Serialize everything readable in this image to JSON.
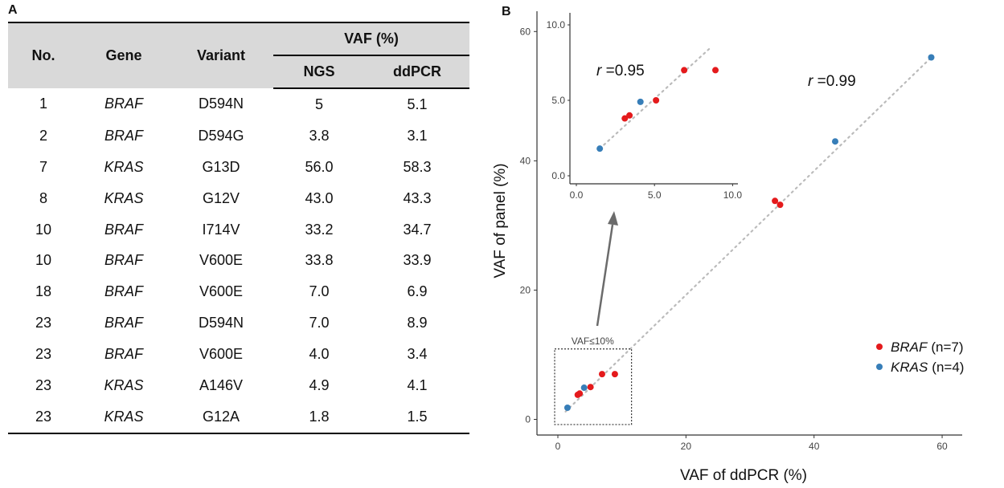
{
  "panel_labels": {
    "a": "A",
    "b": "B"
  },
  "table": {
    "headers": {
      "no": "No.",
      "gene": "Gene",
      "variant": "Variant",
      "vaf": "VAF (%)",
      "ngs": "NGS",
      "ddpcr": "ddPCR"
    },
    "rows": [
      {
        "no": "1",
        "gene": "BRAF",
        "variant": "D594N",
        "ngs": "5",
        "ddpcr": "5.1"
      },
      {
        "no": "2",
        "gene": "BRAF",
        "variant": "D594G",
        "ngs": "3.8",
        "ddpcr": "3.1"
      },
      {
        "no": "7",
        "gene": "KRAS",
        "variant": "G13D",
        "ngs": "56.0",
        "ddpcr": "58.3"
      },
      {
        "no": "8",
        "gene": "KRAS",
        "variant": "G12V",
        "ngs": "43.0",
        "ddpcr": "43.3"
      },
      {
        "no": "10",
        "gene": "BRAF",
        "variant": "I714V",
        "ngs": "33.2",
        "ddpcr": "34.7"
      },
      {
        "no": "10",
        "gene": "BRAF",
        "variant": "V600E",
        "ngs": "33.8",
        "ddpcr": "33.9"
      },
      {
        "no": "18",
        "gene": "BRAF",
        "variant": "V600E",
        "ngs": "7.0",
        "ddpcr": "6.9"
      },
      {
        "no": "23",
        "gene": "BRAF",
        "variant": "D594N",
        "ngs": "7.0",
        "ddpcr": "8.9"
      },
      {
        "no": "23",
        "gene": "BRAF",
        "variant": "V600E",
        "ngs": "4.0",
        "ddpcr": "3.4"
      },
      {
        "no": "23",
        "gene": "KRAS",
        "variant": "A146V",
        "ngs": "4.9",
        "ddpcr": "4.1"
      },
      {
        "no": "23",
        "gene": "KRAS",
        "variant": "G12A",
        "ngs": "1.8",
        "ddpcr": "1.5"
      }
    ]
  },
  "chart_data": {
    "type": "scatter",
    "xlabel": "VAF of ddPCR (%)",
    "ylabel": "VAF of panel (%)",
    "xlim": [
      0,
      62
    ],
    "ylim": [
      0,
      61
    ],
    "xticks": [
      0,
      20,
      40,
      60
    ],
    "yticks": [
      0,
      20,
      40,
      60
    ],
    "grid": false,
    "legend_position": "right",
    "colors": {
      "BRAF": "#e41a1c",
      "KRAS": "#377eb8",
      "trend": "#bbbbbb",
      "arrow": "#6b6b6b"
    },
    "series": [
      {
        "name": "BRAF",
        "legend_suffix": "(n=7)",
        "color": "#e41a1c",
        "points": [
          [
            5.1,
            5.0
          ],
          [
            3.1,
            3.8
          ],
          [
            34.7,
            33.2
          ],
          [
            33.9,
            33.8
          ],
          [
            6.9,
            7.0
          ],
          [
            8.9,
            7.0
          ],
          [
            3.4,
            4.0
          ]
        ]
      },
      {
        "name": "KRAS",
        "legend_suffix": "(n=4)",
        "color": "#377eb8",
        "points": [
          [
            58.3,
            56.0
          ],
          [
            43.3,
            43.0
          ],
          [
            4.1,
            4.9
          ],
          [
            1.5,
            1.8
          ]
        ]
      }
    ],
    "annotations": {
      "r_main": {
        "r": "r",
        "value": "=0.99"
      },
      "r_inset": {
        "r": "r",
        "value": "=0.95"
      },
      "box_label": "VAF≤10%"
    },
    "inset": {
      "xlim": [
        0,
        10
      ],
      "ylim": [
        0,
        10
      ],
      "xticks": [
        "0.0",
        "5.0",
        "10.0"
      ],
      "yticks": [
        "0.0",
        "5.0",
        "10.0"
      ]
    }
  }
}
